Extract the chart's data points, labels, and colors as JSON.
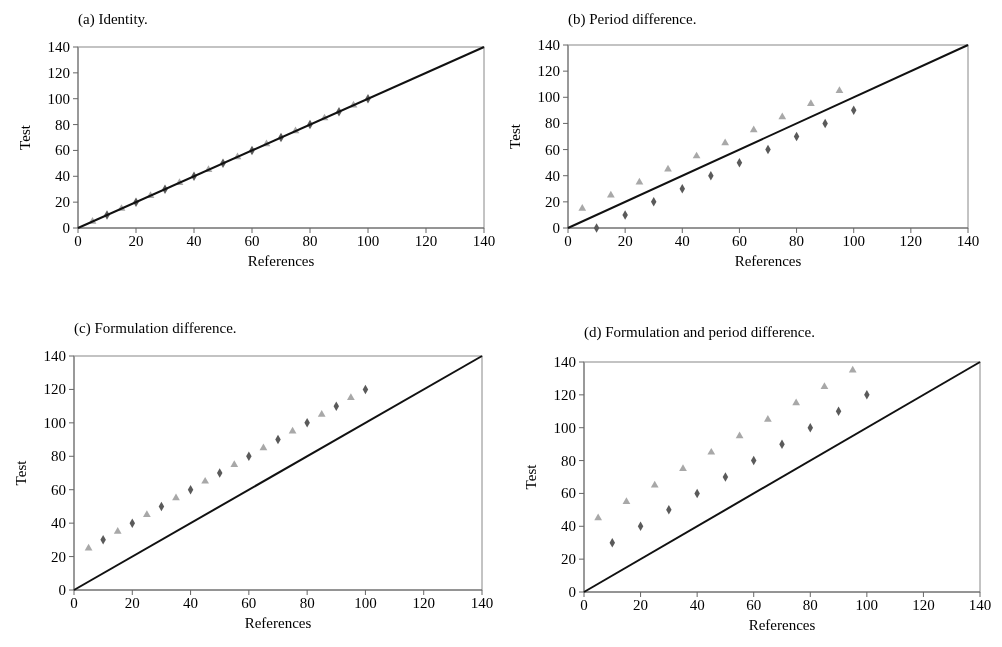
{
  "chart_data": [
    {
      "type": "scatter",
      "title": "(a) Identity.",
      "xlabel": "References",
      "ylabel": "Test",
      "xlim": [
        0,
        140
      ],
      "ylim": [
        0,
        140
      ],
      "xticks": [
        0,
        20,
        40,
        60,
        80,
        100,
        120,
        140
      ],
      "yticks": [
        0,
        20,
        40,
        60,
        80,
        100,
        120,
        140
      ],
      "series": [
        {
          "marker": "diamond",
          "color": "#5a5a5a",
          "x": [
            10,
            20,
            30,
            40,
            50,
            60,
            70,
            80,
            90,
            100
          ],
          "values": [
            10,
            20,
            30,
            40,
            50,
            60,
            70,
            80,
            90,
            100
          ]
        },
        {
          "marker": "triangle",
          "color": "#a8a8a8",
          "x": [
            5,
            15,
            25,
            35,
            45,
            55,
            65,
            75,
            85,
            95
          ],
          "values": [
            5,
            15,
            25,
            35,
            45,
            55,
            65,
            75,
            85,
            95
          ]
        },
        {
          "type": "line",
          "marker": "none",
          "color": "#111111",
          "x": [
            0,
            140
          ],
          "values": [
            0,
            140
          ]
        }
      ]
    },
    {
      "type": "scatter",
      "title": "(b) Period difference.",
      "xlabel": "References",
      "ylabel": "Test",
      "xlim": [
        0,
        140
      ],
      "ylim": [
        0,
        140
      ],
      "xticks": [
        0,
        20,
        40,
        60,
        80,
        100,
        120,
        140
      ],
      "yticks": [
        0,
        20,
        40,
        60,
        80,
        100,
        120,
        140
      ],
      "series": [
        {
          "marker": "diamond",
          "color": "#5a5a5a",
          "x": [
            10,
            20,
            30,
            40,
            50,
            60,
            70,
            80,
            90,
            100
          ],
          "values": [
            0,
            10,
            20,
            30,
            40,
            50,
            60,
            70,
            80,
            90
          ]
        },
        {
          "marker": "triangle",
          "color": "#a8a8a8",
          "x": [
            5,
            15,
            25,
            35,
            45,
            55,
            65,
            75,
            85,
            95
          ],
          "values": [
            15,
            25,
            35,
            45,
            55,
            65,
            75,
            85,
            95,
            105
          ]
        },
        {
          "type": "line",
          "marker": "none",
          "color": "#111111",
          "x": [
            0,
            140
          ],
          "values": [
            0,
            140
          ]
        }
      ]
    },
    {
      "type": "scatter",
      "title": "(c) Formulation difference.",
      "xlabel": "References",
      "ylabel": "Test",
      "xlim": [
        0,
        140
      ],
      "ylim": [
        0,
        140
      ],
      "xticks": [
        0,
        20,
        40,
        60,
        80,
        100,
        120,
        140
      ],
      "yticks": [
        0,
        20,
        40,
        60,
        80,
        100,
        120,
        140
      ],
      "series": [
        {
          "marker": "diamond",
          "color": "#5a5a5a",
          "x": [
            10,
            20,
            30,
            40,
            50,
            60,
            70,
            80,
            90,
            100
          ],
          "values": [
            30,
            40,
            50,
            60,
            70,
            80,
            90,
            100,
            110,
            120
          ]
        },
        {
          "marker": "triangle",
          "color": "#a8a8a8",
          "x": [
            5,
            15,
            25,
            35,
            45,
            55,
            65,
            75,
            85,
            95
          ],
          "values": [
            25,
            35,
            45,
            55,
            65,
            75,
            85,
            95,
            105,
            115
          ]
        },
        {
          "type": "line",
          "marker": "none",
          "color": "#111111",
          "x": [
            0,
            140
          ],
          "values": [
            0,
            140
          ]
        }
      ]
    },
    {
      "type": "scatter",
      "title": "(d) Formulation and period difference.",
      "xlabel": "References",
      "ylabel": "Test",
      "xlim": [
        0,
        140
      ],
      "ylim": [
        0,
        140
      ],
      "xticks": [
        0,
        20,
        40,
        60,
        80,
        100,
        120,
        140
      ],
      "yticks": [
        0,
        20,
        40,
        60,
        80,
        100,
        120,
        140
      ],
      "series": [
        {
          "marker": "diamond",
          "color": "#5a5a5a",
          "x": [
            10,
            20,
            30,
            40,
            50,
            60,
            70,
            80,
            90,
            100
          ],
          "values": [
            30,
            40,
            50,
            60,
            70,
            80,
            90,
            100,
            110,
            120
          ]
        },
        {
          "marker": "triangle",
          "color": "#a8a8a8",
          "x": [
            5,
            15,
            25,
            35,
            45,
            55,
            65,
            75,
            85,
            95
          ],
          "values": [
            45,
            55,
            65,
            75,
            85,
            95,
            105,
            115,
            125,
            135
          ]
        },
        {
          "type": "line",
          "marker": "none",
          "color": "#111111",
          "x": [
            0,
            140
          ],
          "values": [
            0,
            140
          ]
        }
      ]
    }
  ]
}
